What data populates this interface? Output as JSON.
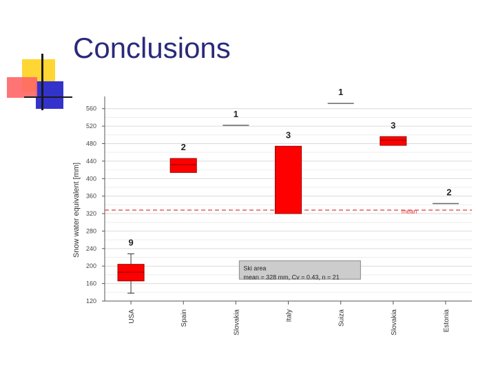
{
  "slide": {
    "title": "Conclusions",
    "title_color": "#2a2a7a"
  },
  "chart_data": {
    "type": "boxplot",
    "title": "",
    "xlabel": "",
    "ylabel": "Snow water equivalent [mm]",
    "ylim": [
      120,
      580
    ],
    "yticks": [
      120,
      160,
      200,
      240,
      280,
      320,
      360,
      400,
      440,
      480,
      520,
      560
    ],
    "grid": true,
    "categories": [
      "USA",
      "Spain",
      "Slovakia",
      "Italy",
      "Suiza",
      "Slovakia",
      "Estonia"
    ],
    "boxes": [
      {
        "label": "USA",
        "n": "9",
        "q1": 166,
        "median": 186,
        "q3": 204,
        "whisker_low": 138,
        "whisker_high": 228
      },
      {
        "label": "Spain",
        "n": "2",
        "q1": 414,
        "median": 432,
        "q3": 446,
        "whisker_low": null,
        "whisker_high": null
      },
      {
        "label": "Slovakia",
        "n": "1",
        "q1": 522,
        "median": 522,
        "q3": 522,
        "whisker_low": null,
        "whisker_high": null
      },
      {
        "label": "Italy",
        "n": "3",
        "q1": 320,
        "median": null,
        "q3": 474,
        "whisker_low": null,
        "whisker_high": null
      },
      {
        "label": "Suiza",
        "n": "1",
        "q1": 572,
        "median": 572,
        "q3": 572,
        "whisker_low": null,
        "whisker_high": null
      },
      {
        "label": "Slovakia",
        "n": "3",
        "q1": 476,
        "median": 488,
        "q3": 496,
        "whisker_low": null,
        "whisker_high": null
      },
      {
        "label": "Estonia",
        "n": "2",
        "q1": 341,
        "median": 342,
        "q3": 343,
        "whisker_low": null,
        "whisker_high": null
      }
    ],
    "mean_line": {
      "value": 328,
      "label": "mean"
    },
    "annotation": {
      "line1": "Ski area",
      "line2": "mean = 328 mm, Cv = 0.43, n = 21"
    },
    "colors": {
      "box": "#ff0000",
      "box_edge": "#990000",
      "mean": "#e23a3a",
      "grid": "#d9d9d9",
      "annotation_bg": "#cccccc"
    }
  }
}
